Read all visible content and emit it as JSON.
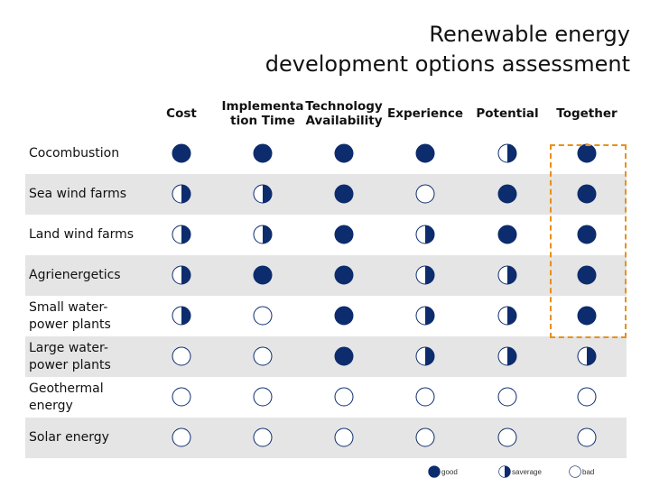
{
  "title_line1": "Renewable energy",
  "title_line2": "development options assessment",
  "columns": [
    "Cost",
    "Implementa tion Time",
    "Technology Availability",
    "Experience",
    "Potential",
    "Together"
  ],
  "colors": {
    "good": "#0d2c6e",
    "outline": "#0d2c6e",
    "shade": "#e5e5e5",
    "highlight": "#e8901a"
  },
  "rows": [
    {
      "label": "Cocombustion",
      "ratings": [
        "good",
        "good",
        "good",
        "good",
        "average",
        "good"
      ]
    },
    {
      "label": "Sea wind farms",
      "ratings": [
        "average",
        "average",
        "good",
        "bad",
        "good",
        "good"
      ]
    },
    {
      "label": "Land wind farms",
      "ratings": [
        "average",
        "average",
        "good",
        "average",
        "good",
        "good"
      ]
    },
    {
      "label": "Agrienergetics",
      "ratings": [
        "average",
        "good",
        "good",
        "average",
        "average",
        "good"
      ]
    },
    {
      "label": "Small water-power plants",
      "ratings": [
        "average",
        "bad",
        "good",
        "average",
        "average",
        "good"
      ]
    },
    {
      "label": "Large water-power plants",
      "ratings": [
        "bad",
        "bad",
        "good",
        "average",
        "average",
        "average"
      ]
    },
    {
      "label": "Geothermal energy",
      "ratings": [
        "bad",
        "bad",
        "bad",
        "bad",
        "bad",
        "bad"
      ]
    },
    {
      "label": "Solar energy",
      "ratings": [
        "bad",
        "bad",
        "bad",
        "bad",
        "bad",
        "bad"
      ]
    }
  ],
  "legend": {
    "good": "good",
    "average": "saverage",
    "bad": "bad"
  }
}
